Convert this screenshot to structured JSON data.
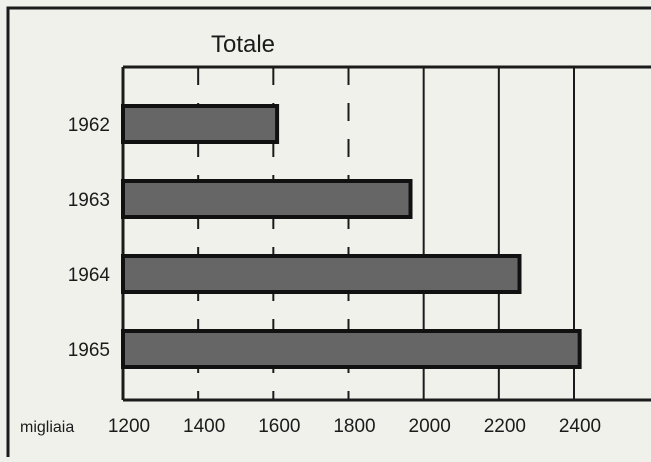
{
  "chart_data": {
    "type": "bar",
    "orientation": "horizontal",
    "title": "Totale",
    "xlabel": "migliaia",
    "categories": [
      "1962",
      "1963",
      "1964",
      "1965"
    ],
    "values": [
      1610,
      1965,
      2255,
      2415
    ],
    "xlim": [
      1200,
      2400
    ],
    "x_ticks": [
      1200,
      1400,
      1600,
      1800,
      2000,
      2200,
      2400
    ],
    "grid": true,
    "colors": {
      "bar_fill": "#666666",
      "bar_stroke": "#111111",
      "background": "#f1f1ec",
      "ink": "#1b1b1b"
    }
  }
}
